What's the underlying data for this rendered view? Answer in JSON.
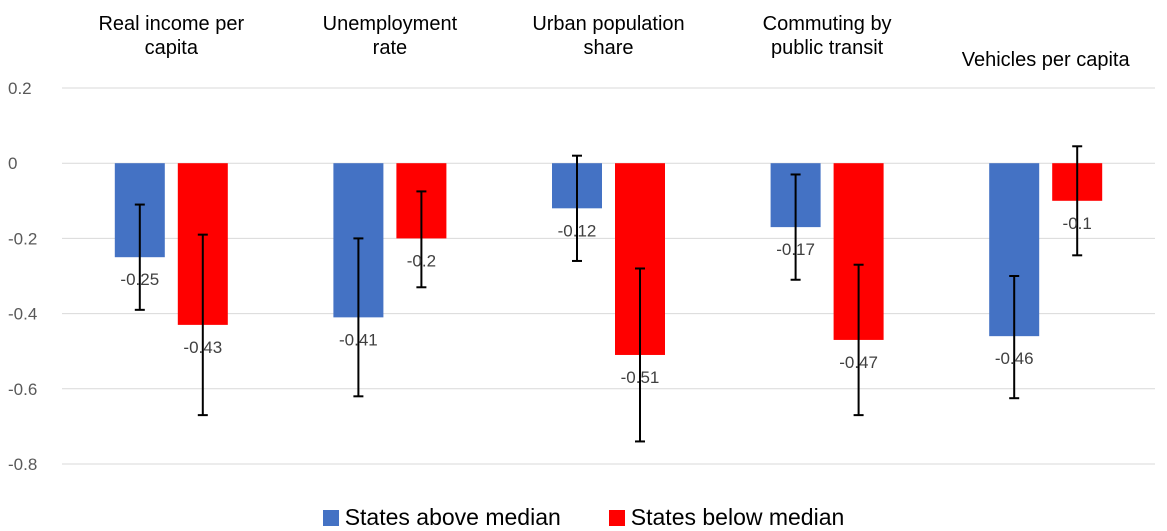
{
  "chart_data": {
    "type": "bar",
    "categories": [
      "Real income per capita",
      "Unemployment rate",
      "Urban population share",
      "Commuting by public transit",
      "Vehicles per capita"
    ],
    "category_display": [
      "Real income per\ncapita",
      "Unemployment\nrate",
      "Urban population\nshare",
      "Commuting by\npublic transit",
      "Vehicles per capita"
    ],
    "series": [
      {
        "name": "States above median",
        "color": "#4472C4",
        "values": [
          -0.25,
          -0.41,
          -0.12,
          -0.17,
          -0.46
        ],
        "labels": [
          "-0.25",
          "-0.41",
          "-0.12",
          "-0.17",
          "-0.46"
        ],
        "error_low": [
          -0.39,
          -0.62,
          -0.26,
          -0.31,
          -0.625
        ],
        "error_high": [
          -0.11,
          -0.2,
          0.02,
          -0.03,
          -0.3
        ]
      },
      {
        "name": "States below median",
        "color": "#FF0000",
        "values": [
          -0.43,
          -0.2,
          -0.51,
          -0.47,
          -0.1
        ],
        "labels": [
          "-0.43",
          "-0.2",
          "-0.51",
          "-0.47",
          "-0.1"
        ],
        "error_low": [
          -0.67,
          -0.33,
          -0.74,
          -0.67,
          -0.245
        ],
        "error_high": [
          -0.19,
          -0.075,
          -0.28,
          -0.27,
          0.045
        ]
      }
    ],
    "y_ticks": [
      0.2,
      0,
      -0.2,
      -0.4,
      -0.6,
      -0.8
    ],
    "y_tick_labels": [
      "0.2",
      "0",
      "-0.2",
      "-0.4",
      "-0.6",
      "-0.8"
    ],
    "ylim": [
      -0.8,
      0.2
    ],
    "grid": true,
    "gridline_color": "#D9D9D9",
    "legend_position": "bottom",
    "title": "",
    "xlabel": "",
    "ylabel": ""
  }
}
